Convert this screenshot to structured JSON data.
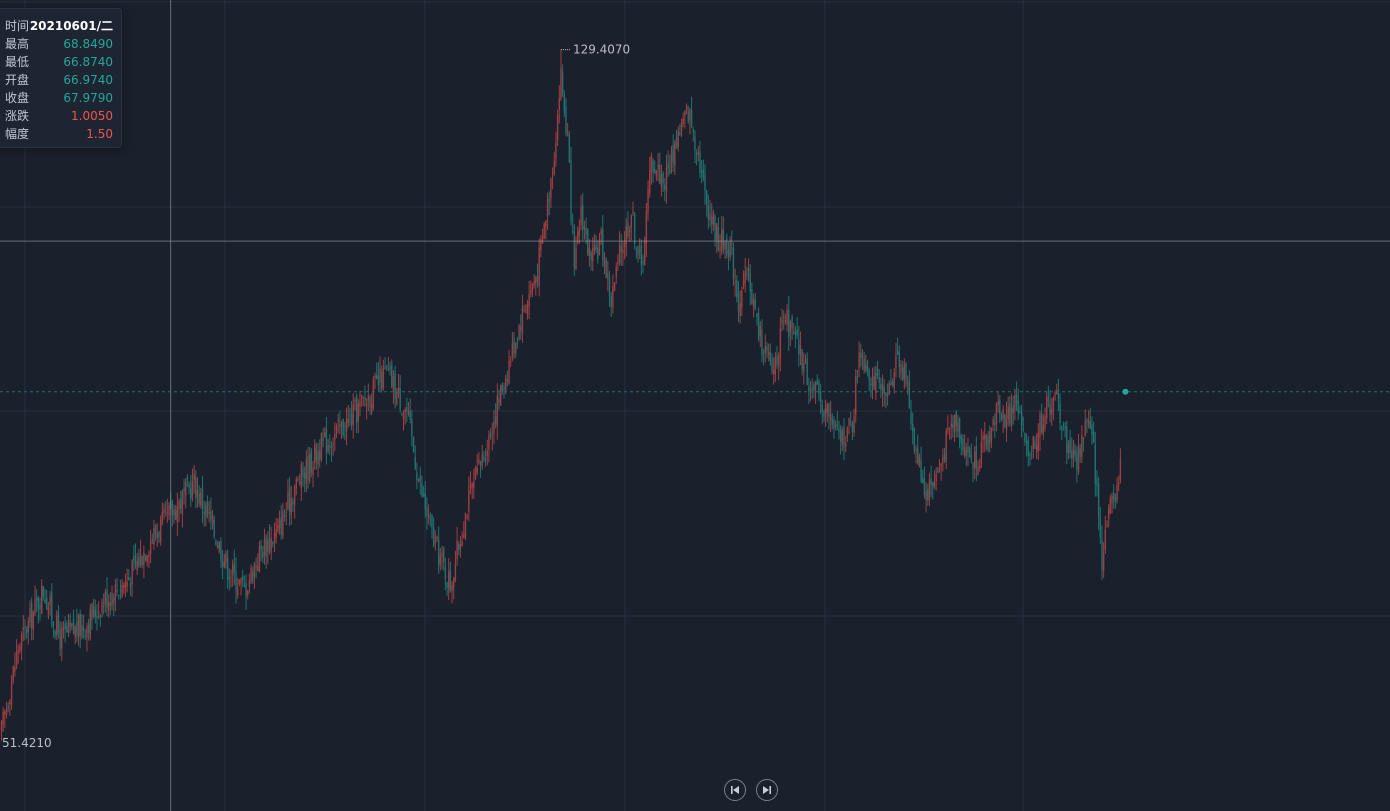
{
  "ohlc": {
    "time_label": "时间",
    "time_value": "20210601/二",
    "high_label": "最高",
    "high_value": "68.8490",
    "low_label": "最低",
    "low_value": "66.8740",
    "open_label": "开盘",
    "open_value": "66.9740",
    "close_label": "收盘",
    "close_value": "67.9790",
    "change_label": "涨跌",
    "change_value": "1.0050",
    "amplitude_label": "幅度",
    "amplitude_value": "1.50"
  },
  "colors": {
    "up": "#ef5350",
    "down": "#26a69a",
    "background": "#1a202c",
    "grid": "#263040",
    "crosshair": "#9aa0aa",
    "last_price_line": "#1f6f6a"
  },
  "navigation": {
    "prev_icon": "skip-back-icon",
    "next_icon": "skip-forward-icon"
  },
  "chart_data": {
    "type": "candlestick",
    "annotations": {
      "max_price": "129.4070",
      "min_price": "51.4210"
    },
    "ylim": [
      43.5,
      135
    ],
    "last_close": 90.8,
    "crosshair_price": 107.8,
    "crosshair_index": 101,
    "grid": true,
    "close_path": [
      [
        0,
        52.5
      ],
      [
        10,
        62.0
      ],
      [
        25,
        68.5
      ],
      [
        35,
        63.0
      ],
      [
        50,
        64.5
      ],
      [
        62,
        67.5
      ],
      [
        75,
        69.5
      ],
      [
        90,
        74.5
      ],
      [
        105,
        78.0
      ],
      [
        115,
        80.5
      ],
      [
        125,
        76.0
      ],
      [
        135,
        71.0
      ],
      [
        145,
        68.5
      ],
      [
        155,
        73.0
      ],
      [
        165,
        75.0
      ],
      [
        175,
        80.0
      ],
      [
        190,
        84.5
      ],
      [
        205,
        87.0
      ],
      [
        220,
        90.5
      ],
      [
        230,
        93.0
      ],
      [
        242,
        88.5
      ],
      [
        250,
        80.0
      ],
      [
        258,
        74.0
      ],
      [
        268,
        69.0
      ],
      [
        278,
        78.0
      ],
      [
        290,
        85.0
      ],
      [
        300,
        92.0
      ],
      [
        310,
        99.0
      ],
      [
        320,
        104.5
      ],
      [
        326,
        112.0
      ],
      [
        330,
        118.0
      ],
      [
        334,
        126.5
      ],
      [
        338,
        119.0
      ],
      [
        342,
        104.0
      ],
      [
        346,
        111.5
      ],
      [
        352,
        105.0
      ],
      [
        358,
        108.0
      ],
      [
        364,
        101.0
      ],
      [
        370,
        107.0
      ],
      [
        376,
        111.0
      ],
      [
        382,
        104.5
      ],
      [
        388,
        117.0
      ],
      [
        396,
        114.5
      ],
      [
        404,
        120.0
      ],
      [
        410,
        122.5
      ],
      [
        416,
        118.0
      ],
      [
        420,
        113.0
      ],
      [
        428,
        108.0
      ],
      [
        435,
        107.5
      ],
      [
        440,
        101.0
      ],
      [
        446,
        104.0
      ],
      [
        452,
        97.5
      ],
      [
        460,
        93.0
      ],
      [
        468,
        99.0
      ],
      [
        476,
        95.5
      ],
      [
        484,
        91.0
      ],
      [
        492,
        89.0
      ],
      [
        500,
        85.5
      ],
      [
        508,
        87.0
      ],
      [
        512,
        96.0
      ],
      [
        520,
        92.5
      ],
      [
        528,
        89.5
      ],
      [
        535,
        95.5
      ],
      [
        540,
        92.0
      ],
      [
        546,
        84.0
      ],
      [
        552,
        79.5
      ],
      [
        560,
        82.0
      ],
      [
        566,
        86.5
      ],
      [
        570,
        88.0
      ],
      [
        576,
        84.0
      ],
      [
        580,
        83.0
      ],
      [
        588,
        85.0
      ],
      [
        596,
        89.5
      ],
      [
        600,
        87.5
      ],
      [
        606,
        90.0
      ],
      [
        612,
        83.5
      ],
      [
        618,
        86.0
      ],
      [
        624,
        89.0
      ],
      [
        630,
        90.0
      ],
      [
        636,
        85.0
      ],
      [
        642,
        83.0
      ],
      [
        648,
        88.0
      ],
      [
        652,
        84.0
      ],
      [
        657,
        72.0
      ],
      [
        660,
        77.0
      ],
      [
        664,
        79.0
      ],
      [
        668,
        82.0
      ]
    ]
  }
}
